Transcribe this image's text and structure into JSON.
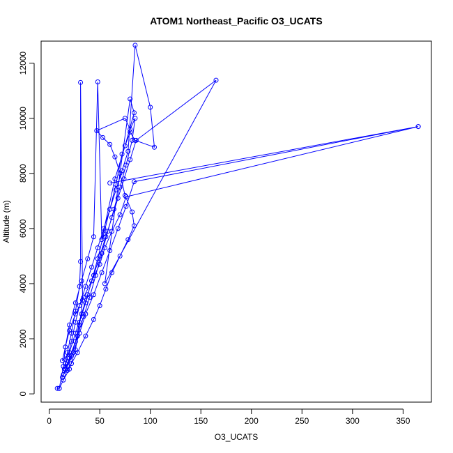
{
  "chart_data": {
    "type": "line",
    "title": "ATOM1 Northeast_Pacific O3_UCATS",
    "xlabel": "O3_UCATS",
    "ylabel": "Altitude (m)",
    "xlim": [
      -8,
      378
    ],
    "ylim": [
      -300,
      12800
    ],
    "xticks": [
      0,
      50,
      100,
      150,
      200,
      250,
      300,
      350
    ],
    "yticks": [
      0,
      2000,
      4000,
      6000,
      8000,
      10000,
      12000
    ],
    "grid": false,
    "legend": "none",
    "series_color": "#0000ff",
    "markers": "open-circle",
    "series": [
      {
        "x": [
          8,
          10,
          14,
          20,
          26,
          30,
          33,
          31,
          31,
          30,
          26,
          22,
          18,
          16,
          15,
          18,
          22,
          26,
          30,
          36,
          42,
          48,
          54,
          60,
          66,
          72,
          78,
          85,
          100,
          104,
          85,
          80,
          72,
          66,
          60,
          54,
          48,
          42,
          36,
          30,
          26,
          20,
          16,
          13,
          16,
          22,
          28,
          34,
          40,
          46,
          52,
          58,
          64,
          70,
          76,
          82,
          85,
          80,
          75,
          47,
          53,
          60,
          65,
          70,
          75,
          82,
          84,
          78,
          70,
          62,
          56,
          50,
          44,
          36,
          28,
          22,
          18,
          14,
          18,
          24,
          30,
          36,
          44,
          52,
          60,
          68,
          76,
          84,
          365,
          60,
          365,
          76,
          70,
          62,
          55,
          50,
          42,
          34,
          26,
          20,
          16,
          13,
          20,
          26,
          32,
          38,
          44,
          50,
          56,
          62,
          68,
          74,
          80,
          86,
          165,
          55,
          80,
          84,
          75,
          65,
          52,
          48,
          44,
          38,
          32,
          26,
          20,
          16,
          14,
          10
        ],
        "y": [
          200,
          200,
          500,
          900,
          1600,
          2500,
          3400,
          11300,
          4800,
          3900,
          3000,
          2200,
          1500,
          1100,
          900,
          1300,
          1900,
          2600,
          3200,
          3900,
          4600,
          5300,
          6000,
          6700,
          7400,
          8100,
          8800,
          12650,
          10400,
          8950,
          9200,
          9500,
          8700,
          7600,
          6700,
          5800,
          4900,
          4100,
          3300,
          2600,
          1900,
          1300,
          900,
          600,
          900,
          1400,
          2100,
          2800,
          3500,
          4300,
          5100,
          5900,
          6700,
          7500,
          8300,
          9200,
          10000,
          9600,
          10000,
          9550,
          9300,
          9050,
          8600,
          8000,
          7200,
          6600,
          6100,
          5600,
          5000,
          4400,
          3800,
          3200,
          2700,
          2100,
          1500,
          1100,
          850,
          700,
          1000,
          1500,
          2200,
          2900,
          3600,
          4400,
          5200,
          6000,
          6800,
          7700,
          9700,
          7650,
          9700,
          7150,
          6500,
          5900,
          5300,
          4700,
          4100,
          3500,
          2900,
          2300,
          1700,
          1200,
          1500,
          2200,
          2900,
          3600,
          4300,
          5000,
          5700,
          6400,
          7100,
          7800,
          8500,
          9200,
          11380,
          4000,
          10700,
          10200,
          9000,
          7800,
          5600,
          11320,
          5700,
          4900,
          4100,
          3300,
          2500,
          1700,
          1000,
          200
        ]
      }
    ]
  }
}
